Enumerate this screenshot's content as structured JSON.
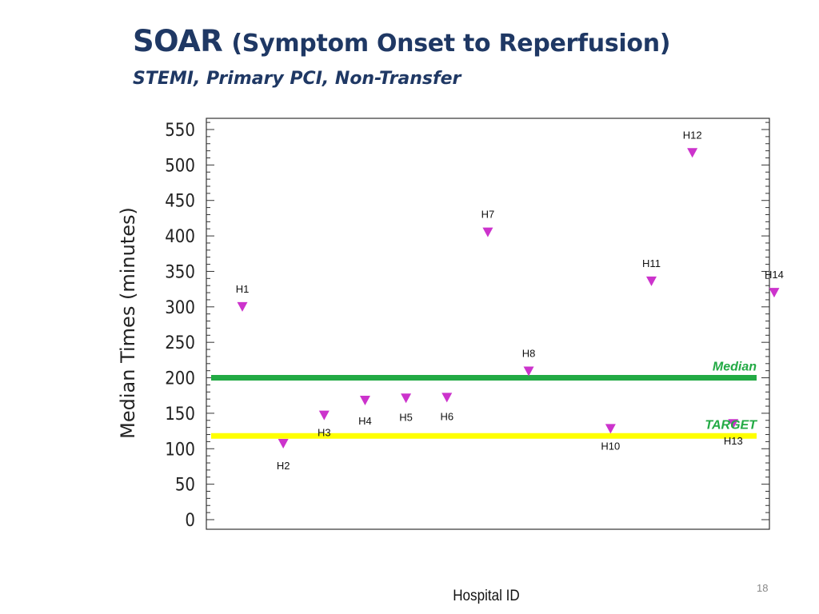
{
  "slide": {
    "title_main": "SOAR",
    "title_paren": "(Symptom Onset to Reperfusion)",
    "subtitle": "STEMI, Primary PCI, Non-Transfer",
    "page_number": "18"
  },
  "chart_data": {
    "type": "scatter",
    "xlabel": "Hospital ID",
    "ylabel": "Median Times (minutes)",
    "ylim": [
      0,
      560
    ],
    "yticks": [
      0,
      50,
      100,
      150,
      200,
      250,
      300,
      350,
      400,
      450,
      500,
      550
    ],
    "series": [
      {
        "marker": "triangle-down",
        "color": "#cc33cc",
        "points": [
          {
            "label": "H1",
            "value": 300
          },
          {
            "label": "H2",
            "value": 107
          },
          {
            "label": "H3",
            "value": 147
          },
          {
            "label": "H4",
            "value": 168
          },
          {
            "label": "H5",
            "value": 171
          },
          {
            "label": "H6",
            "value": 172
          },
          {
            "label": "H7",
            "value": 405
          },
          {
            "label": "H8",
            "value": 209
          },
          {
            "label": "H10",
            "value": 128
          },
          {
            "label": "H11",
            "value": 336
          },
          {
            "label": "H12",
            "value": 517
          },
          {
            "label": "H13",
            "value": 135
          },
          {
            "label": "H14",
            "value": 320
          }
        ]
      }
    ],
    "reference_lines": [
      {
        "label": "Median",
        "value": 200,
        "color": "#22aa44"
      },
      {
        "label": "TARGET",
        "value": 118,
        "color": "#ffff00"
      }
    ],
    "grid": false,
    "label_colors": {
      "Median": "#22aa44",
      "TARGET": "#22aa44"
    }
  }
}
